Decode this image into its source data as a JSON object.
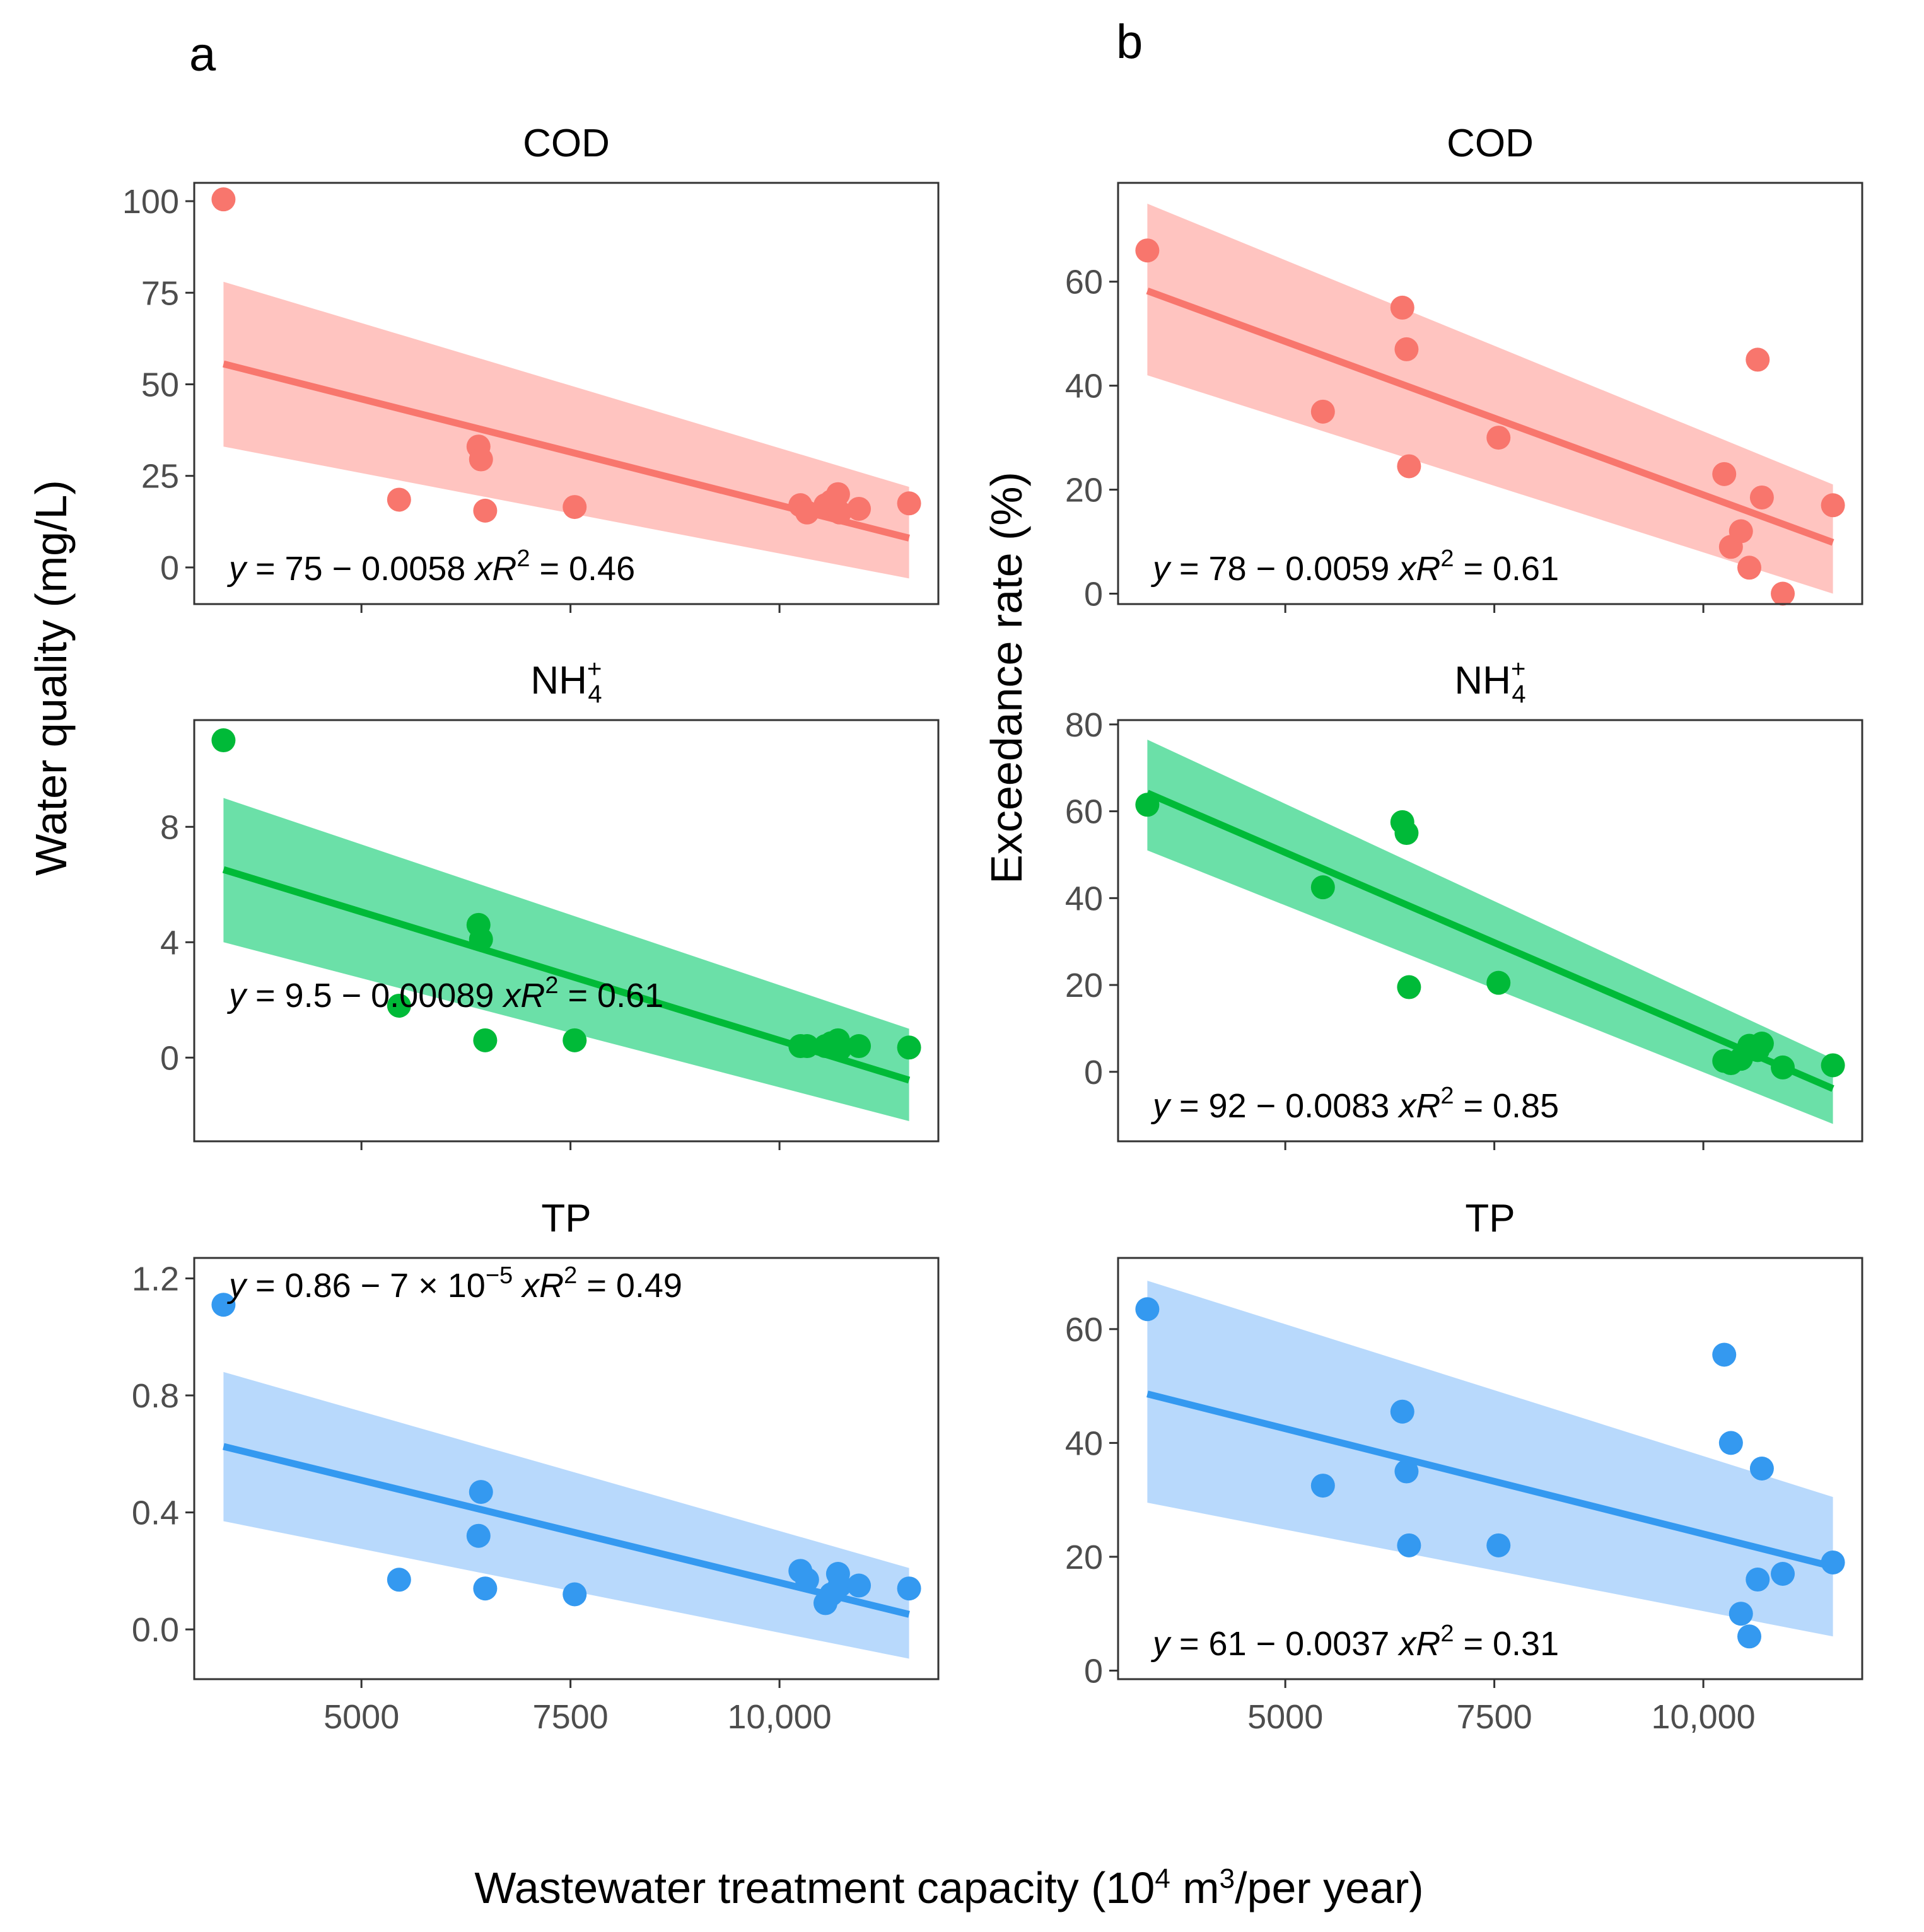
{
  "figure": {
    "xlabel_main": "Wastewater treatment capacity (10",
    "xlabel_sup1": "4",
    "xlabel_mid": " m",
    "xlabel_sup2": "3",
    "xlabel_end": "/per year)",
    "x_ticks": [
      5000,
      7500,
      10000
    ],
    "x_tick_labels": [
      "5000",
      "7500",
      "10,000"
    ],
    "xlim": [
      3000,
      11900
    ]
  },
  "columns": [
    {
      "letter": "a",
      "ylabel": "Water quality (mg/L)"
    },
    {
      "letter": "b",
      "ylabel": "Exceedance rate (%)"
    }
  ],
  "colors": {
    "cod": "#F8766D",
    "nh4": "#00BA38",
    "tp": "#3499F0",
    "cod_band": "#FFC4C0",
    "nh4_band": "#6BE0A8",
    "tp_band": "#B8D9FC"
  },
  "chart_data": [
    {
      "type": "scatter",
      "column": "a",
      "title": "COD",
      "color_key": "cod",
      "x": [
        3350,
        5450,
        6400,
        6430,
        6480,
        7550,
        10250,
        10330,
        10550,
        10620,
        10700,
        10720,
        10950,
        11550
      ],
      "y": [
        100.5,
        18.5,
        33,
        29.5,
        15.5,
        16.5,
        17,
        15,
        17,
        18,
        20,
        15,
        16,
        17.5
      ],
      "fit": {
        "intercept": 75,
        "slope": -0.0058,
        "band_left": [
          33,
          78
        ],
        "band_right": [
          -3,
          22
        ]
      },
      "eq_y": "y",
      "eq_body": " = 75 − 0.0058 ",
      "eq_x": "x",
      "eq_r": "R",
      "eq_r2": "2",
      "eq_val": " = 0.46",
      "ylim": [
        -10,
        105
      ],
      "y_ticks": [
        0,
        25,
        50,
        75,
        100
      ],
      "y_tick_labels": [
        "0",
        "25",
        "50",
        "75",
        "100"
      ],
      "eq_pos": "bottom-left"
    },
    {
      "type": "scatter",
      "column": "a",
      "title": "NH",
      "title_sub": "4",
      "title_sup": "+",
      "color_key": "nh4",
      "x": [
        3350,
        5450,
        6400,
        6430,
        6480,
        7550,
        10250,
        10330,
        10550,
        10620,
        10700,
        10720,
        10950,
        11550
      ],
      "y": [
        11,
        1.8,
        4.6,
        4.1,
        0.6,
        0.6,
        0.4,
        0.4,
        0.4,
        0.5,
        0.6,
        0.3,
        0.4,
        0.35
      ],
      "fit": {
        "intercept": 9.5,
        "slope": -0.00089,
        "band_left": [
          4,
          9
        ],
        "band_right": [
          -2.2,
          1
        ]
      },
      "eq_y": "y",
      "eq_body": " = 9.5 − 0.00089 ",
      "eq_x": "x",
      "eq_r": "R",
      "eq_r2": "2",
      "eq_val": " = 0.61",
      "ylim": [
        -2.9,
        11.7
      ],
      "y_ticks": [
        0,
        4,
        8
      ],
      "y_tick_labels": [
        "0",
        "4",
        "8"
      ],
      "eq_pos": "middle-left"
    },
    {
      "type": "scatter",
      "column": "a",
      "title": "TP",
      "color_key": "tp",
      "x": [
        3350,
        5450,
        6400,
        6430,
        6480,
        7550,
        10250,
        10330,
        10550,
        10620,
        10700,
        10720,
        10950,
        11550
      ],
      "y": [
        1.11,
        0.17,
        0.32,
        0.47,
        0.14,
        0.12,
        0.2,
        0.17,
        0.09,
        0.12,
        0.19,
        0.15,
        0.15,
        0.14
      ],
      "fit": {
        "intercept": 0.86,
        "slope": -7e-05,
        "band_left": [
          0.37,
          0.88
        ],
        "band_right": [
          -0.1,
          0.21
        ]
      },
      "eq_y": "y",
      "eq_body": " = 0.86 − 7 × 10",
      "eq_sup": "−5",
      "eq_x": "x",
      "eq_r": "R",
      "eq_r2": "2",
      "eq_val": " = 0.49",
      "ylim": [
        -0.17,
        1.27
      ],
      "y_ticks": [
        0,
        0.4,
        0.8,
        1.2
      ],
      "y_tick_labels": [
        "0.0",
        "0.4",
        "0.8",
        "1.2"
      ],
      "eq_pos": "top-left"
    },
    {
      "type": "scatter",
      "column": "b",
      "title": "COD",
      "color_key": "cod",
      "x": [
        3350,
        5450,
        6400,
        6450,
        6480,
        7550,
        10250,
        10330,
        10450,
        10550,
        10650,
        10700,
        10950,
        11550
      ],
      "y": [
        66,
        35,
        55,
        47,
        24.5,
        30,
        23,
        9,
        12,
        5,
        45,
        18.5,
        0,
        17
      ],
      "fit": {
        "intercept": 78,
        "slope": -0.0059,
        "band_left": [
          42,
          75
        ],
        "band_right": [
          0,
          21
        ]
      },
      "eq_y": "y",
      "eq_body": " = 78 − 0.0059 ",
      "eq_x": "x",
      "eq_r": "R",
      "eq_r2": "2",
      "eq_val": " = 0.61",
      "ylim": [
        -2,
        79
      ],
      "y_ticks": [
        0,
        20,
        40,
        60
      ],
      "y_tick_labels": [
        "0",
        "20",
        "40",
        "60"
      ],
      "eq_pos": "bottom-left"
    },
    {
      "type": "scatter",
      "column": "b",
      "title": "NH",
      "title_sub": "4",
      "title_sup": "+",
      "color_key": "nh4",
      "x": [
        3350,
        5450,
        6400,
        6450,
        6480,
        7550,
        10250,
        10330,
        10450,
        10550,
        10650,
        10700,
        10950,
        11550
      ],
      "y": [
        61.5,
        42.5,
        57.5,
        55,
        19.5,
        20.5,
        2.5,
        2,
        3,
        6,
        5,
        6.5,
        1,
        1.5
      ],
      "fit": {
        "intercept": 92,
        "slope": -0.0083,
        "band_left": [
          51,
          76.5
        ],
        "band_right": [
          -12,
          3
        ]
      },
      "eq_y": "y",
      "eq_body": " = 92 − 0.0083 ",
      "eq_x": "x",
      "eq_r": "R",
      "eq_r2": "2",
      "eq_val": " = 0.85",
      "ylim": [
        -16,
        81
      ],
      "y_ticks": [
        0,
        20,
        40,
        60,
        80
      ],
      "y_tick_labels": [
        "0",
        "20",
        "40",
        "60",
        "80"
      ],
      "eq_pos": "bottom-left"
    },
    {
      "type": "scatter",
      "column": "b",
      "title": "TP",
      "color_key": "tp",
      "x": [
        3350,
        5450,
        6400,
        6450,
        6480,
        7550,
        10250,
        10330,
        10450,
        10550,
        10650,
        10700,
        10950,
        11550
      ],
      "y": [
        63.5,
        32.5,
        45.5,
        35,
        22,
        22,
        55.5,
        40,
        10,
        6,
        16,
        35.5,
        17,
        19
      ],
      "fit": {
        "intercept": 61,
        "slope": -0.0037,
        "band_left": [
          29.5,
          68.5
        ],
        "band_right": [
          6,
          30.5
        ]
      },
      "eq_y": "y",
      "eq_body": " = 61 − 0.0037 ",
      "eq_x": "x",
      "eq_r": "R",
      "eq_r2": "2",
      "eq_val": " = 0.31",
      "ylim": [
        -1.5,
        72.5
      ],
      "y_ticks": [
        0,
        20,
        40,
        60
      ],
      "y_tick_labels": [
        "0",
        "20",
        "40",
        "60"
      ],
      "eq_pos": "bottom-left"
    }
  ]
}
